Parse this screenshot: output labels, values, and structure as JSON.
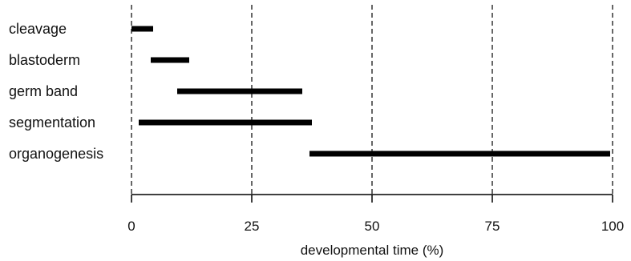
{
  "chart_data": {
    "type": "bar",
    "orientation": "horizontal-range",
    "title": "",
    "xlabel": "developmental time (%)",
    "ylabel": "",
    "xlim": [
      0,
      100
    ],
    "x_ticks": [
      "0",
      "25",
      "50",
      "75",
      "100"
    ],
    "gridlines": "vertical dashed at each x tick",
    "legend": "none",
    "categories": [
      "cleavage",
      "blastoderm",
      "germ band",
      "segmentation",
      "organogenesis"
    ],
    "series": [
      {
        "ranges": [
          {
            "start": 0,
            "end": 4.5
          },
          {
            "start": 4,
            "end": 12
          },
          {
            "start": 9.5,
            "end": 35.5
          },
          {
            "start": 1.5,
            "end": 37.5
          },
          {
            "start": 37,
            "end": 99.5
          }
        ]
      }
    ],
    "colors": {
      "bar": "#000000",
      "grid": "#000000",
      "axis": "#000000"
    }
  }
}
